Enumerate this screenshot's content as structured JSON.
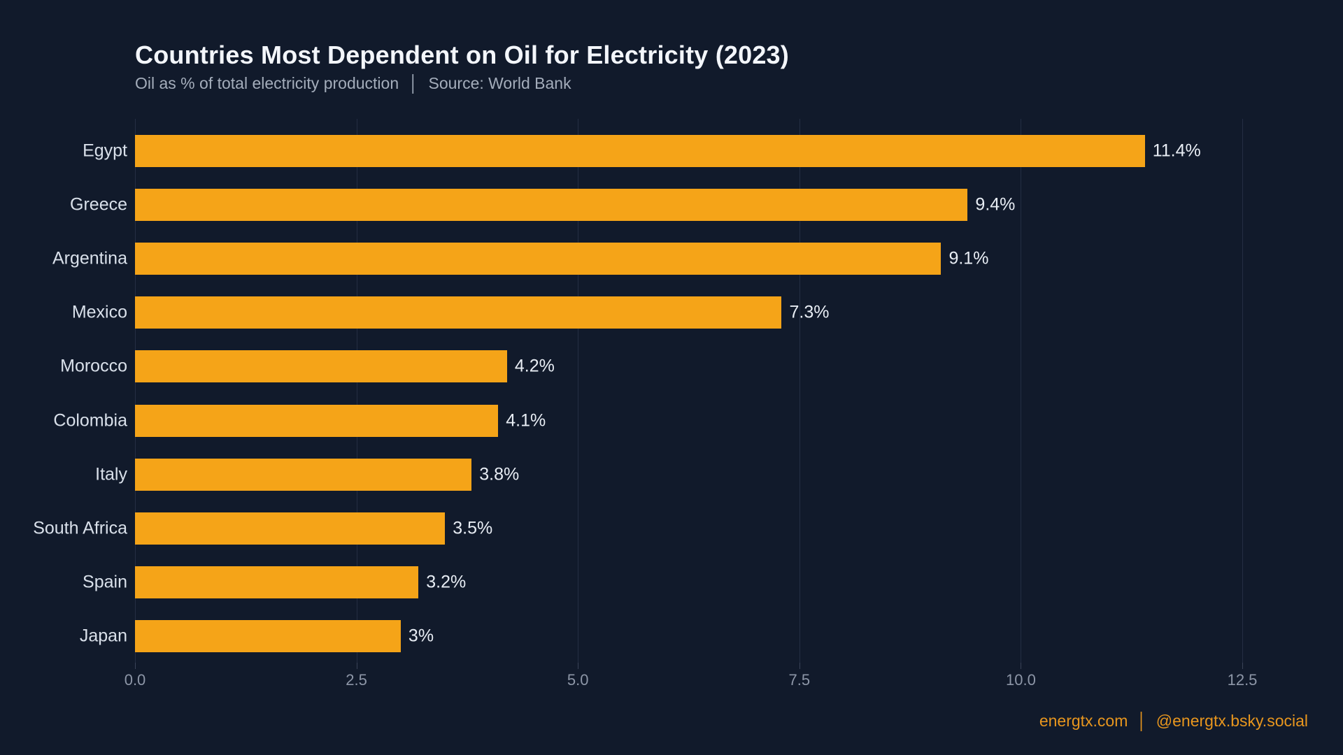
{
  "header": {
    "title": "Countries Most Dependent on Oil for Electricity (2023)",
    "subtitle": "Oil as % of total electricity production",
    "subtitle_separator": "│",
    "source": "Source: World Bank"
  },
  "footer": {
    "site": "energtx.com",
    "separator": "│",
    "handle": "@energtx.bsky.social"
  },
  "colors": {
    "background": "#111a2b",
    "bar": "#f5a418",
    "title_text": "#f3f6fb",
    "subtitle_text": "#a4adbb",
    "category_label": "#d9e0ea",
    "value_label": "#e8edf4",
    "tick_label": "#8d96a7",
    "gridline": "#242e43",
    "footer_text": "#e8961e"
  },
  "chart_data": {
    "type": "bar",
    "orientation": "horizontal",
    "title": "Countries Most Dependent on Oil for Electricity (2023)",
    "subtitle": "Oil as % of total electricity production | Source: World Bank",
    "categories": [
      "Egypt",
      "Greece",
      "Argentina",
      "Mexico",
      "Morocco",
      "Colombia",
      "Italy",
      "South Africa",
      "Spain",
      "Japan"
    ],
    "values": [
      11.4,
      9.4,
      9.1,
      7.3,
      4.2,
      4.1,
      3.8,
      3.5,
      3.2,
      3.0
    ],
    "value_labels": [
      "11.4%",
      "9.4%",
      "9.1%",
      "7.3%",
      "4.2%",
      "4.1%",
      "3.8%",
      "3.5%",
      "3.2%",
      "3%"
    ],
    "xlabel": "",
    "ylabel": "",
    "xlim": [
      0,
      13.4
    ],
    "xticks": [
      0.0,
      2.5,
      5.0,
      7.5,
      10.0,
      12.5
    ],
    "xtick_labels": [
      "0.0",
      "2.5",
      "5.0",
      "7.5",
      "10.0",
      "12.5"
    ],
    "grid": true,
    "legend": false,
    "bar_color": "#f5a418",
    "background_color": "#111a2b"
  }
}
